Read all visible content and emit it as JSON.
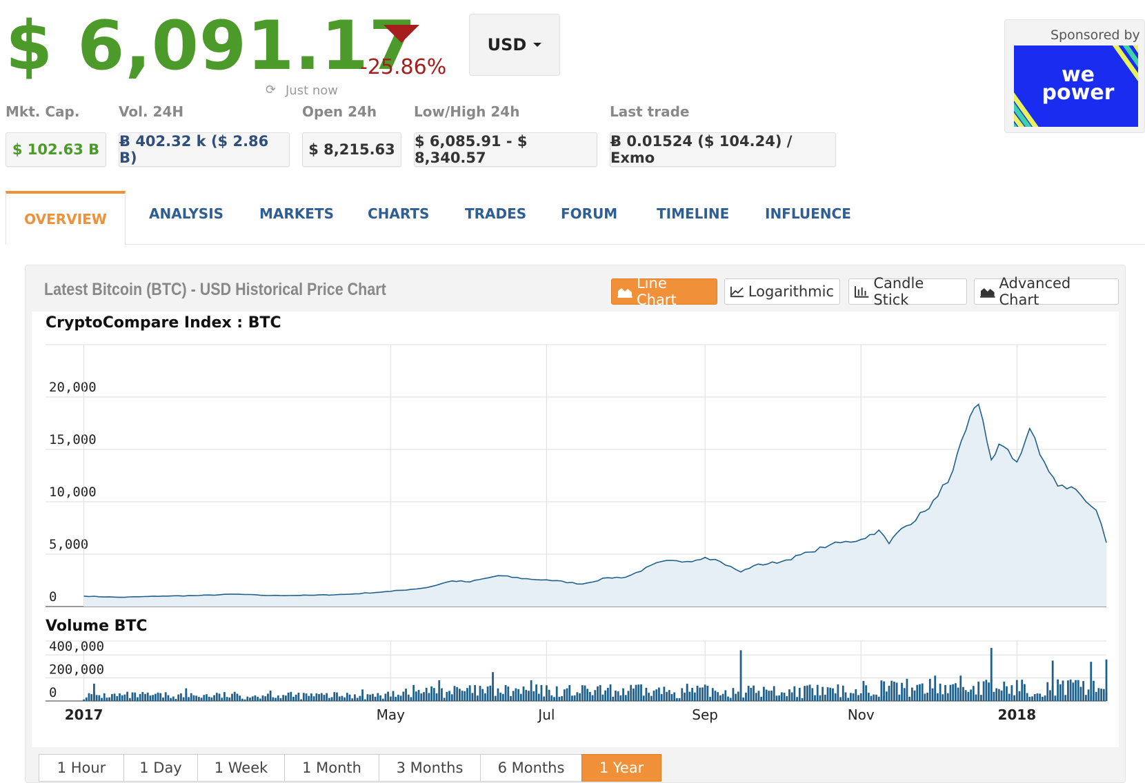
{
  "header": {
    "price": "$ 6,091.17",
    "change": "-25.86%",
    "updated": "Just now",
    "currency": "USD"
  },
  "stats": [
    {
      "label": "Mkt. Cap.",
      "value": "$ 102.63 B",
      "color": "#4c9a2a"
    },
    {
      "label": "Vol. 24H",
      "value": "Ƀ 402.32 k ($ 2.86 B)",
      "color": "#2f4e7a"
    },
    {
      "label": "Open 24h",
      "value": "$ 8,215.63",
      "color": "#333333"
    },
    {
      "label": "Low/High 24h",
      "value": "$ 6,085.91 - $ 8,340.57",
      "color": "#333333"
    },
    {
      "label": "Last trade",
      "value": "Ƀ 0.01524 ($ 104.24) / Exmo",
      "color": "#333333"
    }
  ],
  "sponsor": {
    "label": "Sponsored by",
    "logo_text": "we power"
  },
  "tabs": [
    "OVERVIEW",
    "ANALYSIS",
    "MARKETS",
    "CHARTS",
    "TRADES",
    "FORUM",
    "TIMELINE",
    "INFLUENCE"
  ],
  "active_tab": "OVERVIEW",
  "panel": {
    "title": "Latest Bitcoin (BTC) - USD Historical Price Chart",
    "chart_types": [
      "Line Chart",
      "Logarithmic",
      "Candle Stick",
      "Advanced Chart"
    ],
    "active_chart_type": "Line Chart"
  },
  "ranges": [
    "1 Hour",
    "1 Day",
    "1 Week",
    "1 Month",
    "3 Months",
    "6 Months",
    "1 Year"
  ],
  "active_range": "1 Year",
  "colors": {
    "accent": "#f0913a",
    "price_up": "#4c9a2a",
    "price_down": "#a61d1d",
    "tab": "#2f5e94",
    "line": "#1f5f8b",
    "fill": "#e6eff5"
  },
  "chart_data": [
    {
      "type": "area",
      "title": "CryptoCompare Index : BTC",
      "x": [
        "2017-01-01",
        "2017-01-15",
        "2017-02-01",
        "2017-02-15",
        "2017-03-01",
        "2017-03-15",
        "2017-04-01",
        "2017-04-15",
        "2017-05-01",
        "2017-05-15",
        "2017-05-25",
        "2017-06-01",
        "2017-06-12",
        "2017-06-25",
        "2017-07-01",
        "2017-07-15",
        "2017-07-25",
        "2017-08-01",
        "2017-08-15",
        "2017-08-25",
        "2017-09-01",
        "2017-09-05",
        "2017-09-15",
        "2017-09-20",
        "2017-10-01",
        "2017-10-12",
        "2017-10-20",
        "2017-11-01",
        "2017-11-08",
        "2017-11-12",
        "2017-11-15",
        "2017-11-26",
        "2017-12-01",
        "2017-12-07",
        "2017-12-12",
        "2017-12-17",
        "2017-12-22",
        "2017-12-25",
        "2018-01-01",
        "2018-01-06",
        "2018-01-10",
        "2018-01-17",
        "2018-01-24",
        "2018-02-01",
        "2018-02-05"
      ],
      "series": [
        {
          "values": [
            1000,
            880,
            1000,
            1050,
            1180,
            1050,
            1080,
            1180,
            1450,
            1800,
            2450,
            2350,
            2950,
            2600,
            2550,
            2150,
            2750,
            2800,
            4300,
            4300,
            4700,
            4500,
            3300,
            3900,
            4300,
            5200,
            5900,
            6400,
            7300,
            6000,
            7000,
            9100,
            10500,
            13000,
            16800,
            19300,
            14000,
            15500,
            13800,
            17000,
            14500,
            11500,
            11200,
            9200,
            6100
          ]
        }
      ],
      "ylabel": "",
      "ylim": [
        0,
        25000
      ],
      "yticks": [
        0,
        5000,
        10000,
        15000,
        20000
      ],
      "ytick_labels": [
        "0",
        "5,000",
        "10,000",
        "15,000",
        "20,000"
      ],
      "xtick_labels": [
        {
          "date": "2017-01-01",
          "label": "2017",
          "bold": true
        },
        {
          "date": "2017-05-01",
          "label": "May",
          "bold": false
        },
        {
          "date": "2017-07-01",
          "label": "Jul",
          "bold": false
        },
        {
          "date": "2017-09-01",
          "label": "Sep",
          "bold": false
        },
        {
          "date": "2017-11-01",
          "label": "Nov",
          "bold": false
        },
        {
          "date": "2018-01-01",
          "label": "2018",
          "bold": true
        }
      ],
      "xlim": [
        "2016-12-17",
        "2018-02-05"
      ],
      "grid": true
    },
    {
      "type": "bar",
      "title": "Volume BTC",
      "x": [
        "2017-01-05",
        "2017-02-10",
        "2017-03-15",
        "2017-04-20",
        "2017-05-20",
        "2017-06-10",
        "2017-06-25",
        "2017-07-16",
        "2017-08-05",
        "2017-08-25",
        "2017-09-15",
        "2017-10-10",
        "2017-11-10",
        "2017-11-30",
        "2017-12-10",
        "2017-12-22",
        "2018-01-15",
        "2018-01-30",
        "2018-02-05"
      ],
      "values": [
        150000,
        110000,
        90000,
        100000,
        180000,
        250000,
        180000,
        120000,
        140000,
        150000,
        440000,
        120000,
        170000,
        220000,
        220000,
        460000,
        350000,
        340000,
        360000
      ],
      "ylim": [
        0,
        520000
      ],
      "yticks": [
        0,
        200000,
        400000
      ],
      "ytick_labels": [
        "0",
        "200,000",
        "400,000"
      ]
    }
  ]
}
